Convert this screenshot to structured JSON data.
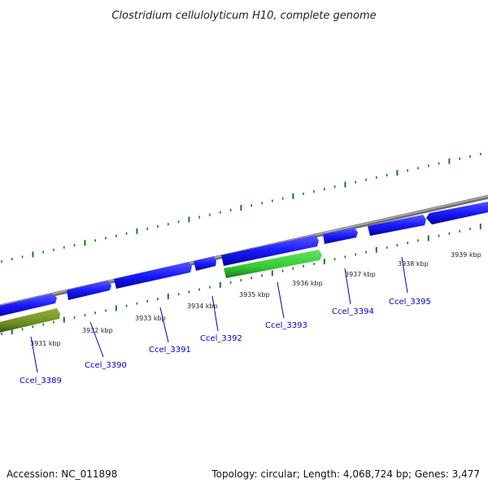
{
  "title": "Clostridium cellulolyticum H10, complete genome",
  "footer": {
    "accession": "Accession: NC_011898",
    "summary": "Topology: circular; Length: 4,068,724 bp; Genes: 3,477"
  },
  "colors": {
    "forward_gene": "#1a1aff",
    "forward_gene_dark": "#0000aa",
    "reverse_gene_green": "#33cc33",
    "reverse_gene_olive": "#6b8e23",
    "backbone": "#8c8c8c",
    "tick": "#1a7a1a",
    "label": "#0000cc"
  },
  "ruler": {
    "unit": "kbp",
    "labels": [
      {
        "kbp": 3931,
        "text": "3931 kbp"
      },
      {
        "kbp": 3932,
        "text": "3932 kbp"
      },
      {
        "kbp": 3933,
        "text": "3933 kbp"
      },
      {
        "kbp": 3934,
        "text": "3934 kbp"
      },
      {
        "kbp": 3935,
        "text": "3935 kbp"
      },
      {
        "kbp": 3936,
        "text": "3936 kbp"
      },
      {
        "kbp": 3937,
        "text": "3937 kbp"
      },
      {
        "kbp": 3938,
        "text": "3938 kbp"
      },
      {
        "kbp": 3939,
        "text": "3939 kbp"
      }
    ]
  },
  "genes": [
    {
      "name": "Ccel_3389"
    },
    {
      "name": "Ccel_3390"
    },
    {
      "name": "Ccel_3391"
    },
    {
      "name": "Ccel_3392"
    },
    {
      "name": "Ccel_3393"
    },
    {
      "name": "Ccel_3394"
    },
    {
      "name": "Ccel_3395"
    }
  ]
}
